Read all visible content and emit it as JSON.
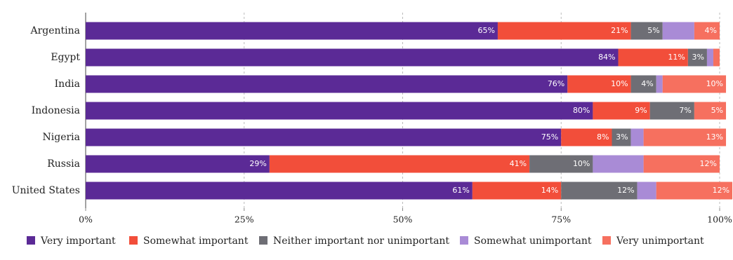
{
  "chart_data": {
    "type": "stacked-barh",
    "categories": [
      "Argentina",
      "Egypt",
      "India",
      "Indonesia",
      "Nigeria",
      "Russia",
      "United States"
    ],
    "series": [
      {
        "name": "Very important",
        "color": "#5b2a96",
        "values": [
          65,
          84,
          76,
          80,
          75,
          29,
          61
        ],
        "value_labels": [
          "65%",
          "84%",
          "76%",
          "80%",
          "75%",
          "29%",
          "61%"
        ]
      },
      {
        "name": "Somewhat important",
        "color": "#f24e3a",
        "values": [
          21,
          11,
          10,
          9,
          8,
          41,
          14
        ],
        "value_labels": [
          "21%",
          "11%",
          "10%",
          "9%",
          "8%",
          "41%",
          "14%"
        ]
      },
      {
        "name": "Neither important nor unimportant",
        "color": "#6e6e75",
        "values": [
          5,
          3,
          4,
          7,
          3,
          10,
          12
        ],
        "value_labels": [
          "5%",
          "3%",
          "4%",
          "7%",
          "3%",
          "10%",
          "12%"
        ]
      },
      {
        "name": "Somewhat unimportant",
        "color": "#a98bd6",
        "values": [
          5,
          1,
          1,
          0,
          2,
          8,
          3
        ],
        "value_labels": [
          null,
          null,
          null,
          null,
          null,
          null,
          null
        ]
      },
      {
        "name": "Very unimportant",
        "color": "#f6705f",
        "values": [
          4,
          1,
          10,
          5,
          13,
          12,
          12
        ],
        "value_labels": [
          "4%",
          null,
          "10%",
          "5%",
          "13%",
          "12%",
          "12%"
        ]
      }
    ],
    "xlim": [
      0,
      100
    ],
    "xticks": [
      {
        "value": 0,
        "label": "0%"
      },
      {
        "value": 25,
        "label": "25%"
      },
      {
        "value": 50,
        "label": "50%"
      },
      {
        "value": 75,
        "label": "75%"
      },
      {
        "value": 100,
        "label": "100%"
      }
    ],
    "grid": true,
    "legend": "bottom"
  }
}
